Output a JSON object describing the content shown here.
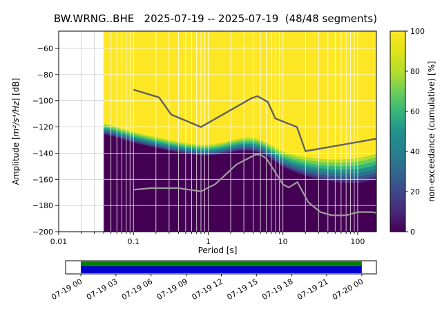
{
  "title": "BW.WRNG..BHE   2025-07-19 -- 2025-07-19  (48/48 segments)",
  "axes": {
    "xlabel": "Period [s]",
    "ylabel_prefix": "Amplitude [",
    "ylabel_math": "m²/s⁴/Hz",
    "ylabel_suffix": "] [dB]"
  },
  "colorbar": {
    "label": "non-exceedance (cumulative) [%]",
    "tick_values": [
      0,
      20,
      40,
      60,
      80,
      100
    ],
    "tick_labels": [
      "0",
      "20",
      "40",
      "60",
      "80",
      "100"
    ]
  },
  "chart_data": {
    "type": "heatmap",
    "station": "BW.WRNG..BHE",
    "date_range": "2025-07-19 -- 2025-07-19",
    "segments": "48/48",
    "xlabel": "Period [s]",
    "ylabel": "Amplitude [m²/s⁴/Hz] [dB]",
    "x_scale": "log",
    "xlim": [
      0.01,
      178
    ],
    "ylim": [
      -200,
      -46.8
    ],
    "x_tick_values": [
      0.01,
      0.1,
      1,
      10,
      100
    ],
    "x_tick_labels": [
      "0.01",
      "0.1",
      "1",
      "10",
      "100"
    ],
    "y_tick_values": [
      -200,
      -180,
      -160,
      -140,
      -120,
      -100,
      -80,
      -60
    ],
    "y_tick_labels": [
      "−200",
      "−180",
      "−160",
      "−140",
      "−120",
      "−100",
      "−80",
      "−60"
    ],
    "colormap": "viridis",
    "colorbar_label": "non-exceedance (cumulative) [%]",
    "yellow": "#fde725",
    "dark": "#440154",
    "viridis_stops": [
      [
        0,
        "#440154"
      ],
      [
        0.1,
        "#482878"
      ],
      [
        0.2,
        "#3e4989"
      ],
      [
        0.3,
        "#31688e"
      ],
      [
        0.4,
        "#26828e"
      ],
      [
        0.5,
        "#21918c"
      ],
      [
        0.6,
        "#35b779"
      ],
      [
        0.7,
        "#6ece58"
      ],
      [
        0.8,
        "#b5de2b"
      ],
      [
        0.9,
        "#dfe318"
      ],
      [
        1,
        "#fde725"
      ]
    ],
    "band_colors": [
      {
        "f0": 0.0,
        "f1": 0.15,
        "color": "#b5de2b"
      },
      {
        "f0": 0.15,
        "f1": 0.3,
        "color": "#6ece58"
      },
      {
        "f0": 0.3,
        "f1": 0.45,
        "color": "#35b779"
      },
      {
        "f0": 0.45,
        "f1": 0.6,
        "color": "#21918c"
      },
      {
        "f0": 0.6,
        "f1": 0.75,
        "color": "#2c728e"
      },
      {
        "f0": 0.75,
        "f1": 0.88,
        "color": "#3b528b"
      },
      {
        "f0": 0.88,
        "f1": 1.0,
        "color": "#472d7b"
      }
    ],
    "transition": {
      "periods": [
        0.04,
        0.055,
        0.07,
        0.1,
        0.15,
        0.22,
        0.32,
        0.5,
        0.7,
        0.9,
        1.2,
        1.6,
        2.2,
        3.0,
        4.0,
        5.0,
        6.5,
        8.0,
        10,
        13,
        17,
        22,
        30,
        42,
        60,
        85,
        110,
        140,
        178
      ],
      "top_db": [
        -117.5,
        -119.5,
        -121.5,
        -124,
        -126.5,
        -128.5,
        -130.5,
        -132.5,
        -133.5,
        -134,
        -133.5,
        -132,
        -130,
        -128.5,
        -128.5,
        -130,
        -133,
        -136,
        -139,
        -141,
        -142.5,
        -143.5,
        -144.5,
        -145,
        -145,
        -144.5,
        -143.5,
        -142,
        -140.5
      ],
      "bottom_db": [
        -125.5,
        -127.5,
        -129.5,
        -132,
        -134.5,
        -136.5,
        -138.5,
        -140.5,
        -141.5,
        -142,
        -141.5,
        -140.5,
        -139,
        -138,
        -138.5,
        -140,
        -143.5,
        -147,
        -150.5,
        -153.5,
        -156,
        -158,
        -160,
        -161.5,
        -162.5,
        -163,
        -162.5,
        -161.5,
        -160
      ]
    },
    "noise_models": {
      "color_high": "#616161",
      "color_low": "#9e9e9e",
      "nhnm": [
        [
          0.1,
          -91.5
        ],
        [
          0.22,
          -97.4
        ],
        [
          0.32,
          -110.5
        ],
        [
          0.8,
          -120.0
        ],
        [
          3.8,
          -98.0
        ],
        [
          4.6,
          -96.5
        ],
        [
          6.3,
          -101.0
        ],
        [
          7.9,
          -113.5
        ],
        [
          15.4,
          -120.0
        ],
        [
          20.0,
          -138.5
        ],
        [
          178,
          -129.0
        ]
      ],
      "nlnm": [
        [
          0.1,
          -168.0
        ],
        [
          0.17,
          -166.7
        ],
        [
          0.4,
          -166.7
        ],
        [
          0.8,
          -169.2
        ],
        [
          1.24,
          -163.7
        ],
        [
          2.4,
          -148.6
        ],
        [
          4.3,
          -141.1
        ],
        [
          5.0,
          -141.1
        ],
        [
          6.0,
          -144.0
        ],
        [
          10.0,
          -163.8
        ],
        [
          12.0,
          -166.2
        ],
        [
          15.6,
          -162.1
        ],
        [
          21.9,
          -177.5
        ],
        [
          31.6,
          -185.0
        ],
        [
          45.0,
          -187.5
        ],
        [
          70.0,
          -187.5
        ],
        [
          101.0,
          -185.0
        ],
        [
          154.0,
          -185.0
        ],
        [
          178,
          -185.6
        ]
      ]
    },
    "timeline": {
      "tick_labels": [
        "07-19 00",
        "07-19 03",
        "07-19 06",
        "07-19 09",
        "07-19 12",
        "07-19 15",
        "07-19 18",
        "07-19 21",
        "07-20 00"
      ],
      "fill_green": "#008000",
      "fill_blue": "#0000cd",
      "coverage_start_frac": 0.049,
      "coverage_end_frac": 0.953
    }
  }
}
